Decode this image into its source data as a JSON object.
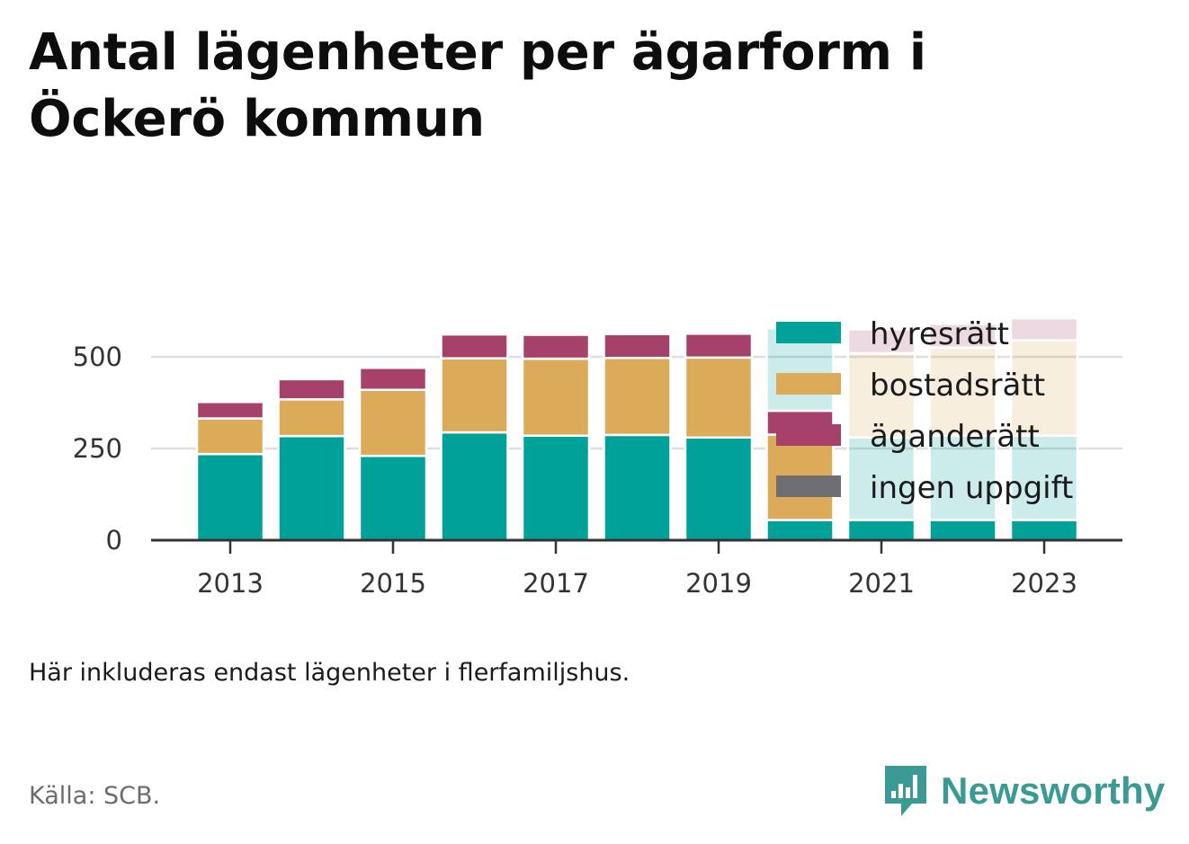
{
  "title": "Antal lägenheter per ägarform i Öckerö kommun",
  "note": "Här inkluderas endast lägenheter i flerfamiljshus.",
  "source": "Källa: SCB.",
  "brand": {
    "name": "Newsworthy",
    "icon": "newsworthy-logo-icon",
    "color": "#3c9a95"
  },
  "chart_data": {
    "type": "bar",
    "stacked": true,
    "categories": [
      "2013",
      "2014",
      "2015",
      "2016",
      "2017",
      "2018",
      "2019",
      "2020",
      "2021",
      "2022",
      "2023"
    ],
    "x_tick_labels": [
      "2013",
      "2015",
      "2017",
      "2019",
      "2021",
      "2023"
    ],
    "y_ticks": [
      0,
      250,
      500
    ],
    "ylim": [
      0,
      620
    ],
    "grid": true,
    "legend_position": "top-right",
    "series": [
      {
        "name": "hyresrätt",
        "color": "#00a199",
        "values": [
          235,
          284,
          230,
          294,
          285,
          287,
          280,
          55,
          55,
          55,
          55
        ]
      },
      {
        "name": "bostadsrätt",
        "color": "#dbab5a",
        "values": [
          97,
          100,
          180,
          202,
          210,
          210,
          218,
          233,
          0,
          0,
          0
        ]
      },
      {
        "name": "äganderätt",
        "color": "#a5416b",
        "values": [
          45,
          55,
          60,
          65,
          65,
          65,
          65,
          65,
          0,
          0,
          0
        ]
      },
      {
        "name": "ingen uppgift",
        "color": "#6e6e73",
        "values": [
          5,
          0,
          0,
          0,
          0,
          0,
          0,
          0,
          0,
          0,
          0
        ]
      }
    ],
    "faded": [
      {
        "category": "2020",
        "segments": [
          {
            "series": "hyresrätt",
            "value": 225
          }
        ]
      },
      {
        "category": "2021",
        "segments": [
          {
            "series": "hyresrätt",
            "value": 225
          },
          {
            "series": "bostadsrätt",
            "value": 230
          },
          {
            "series": "äganderätt",
            "value": 65
          }
        ]
      },
      {
        "category": "2022",
        "segments": [
          {
            "series": "hyresrätt",
            "value": 230
          },
          {
            "series": "bostadsrätt",
            "value": 240
          },
          {
            "series": "äganderätt",
            "value": 65
          }
        ]
      },
      {
        "category": "2023",
        "segments": [
          {
            "series": "hyresrätt",
            "value": 230
          },
          {
            "series": "bostadsrätt",
            "value": 260
          },
          {
            "series": "äganderätt",
            "value": 60
          }
        ]
      }
    ]
  }
}
